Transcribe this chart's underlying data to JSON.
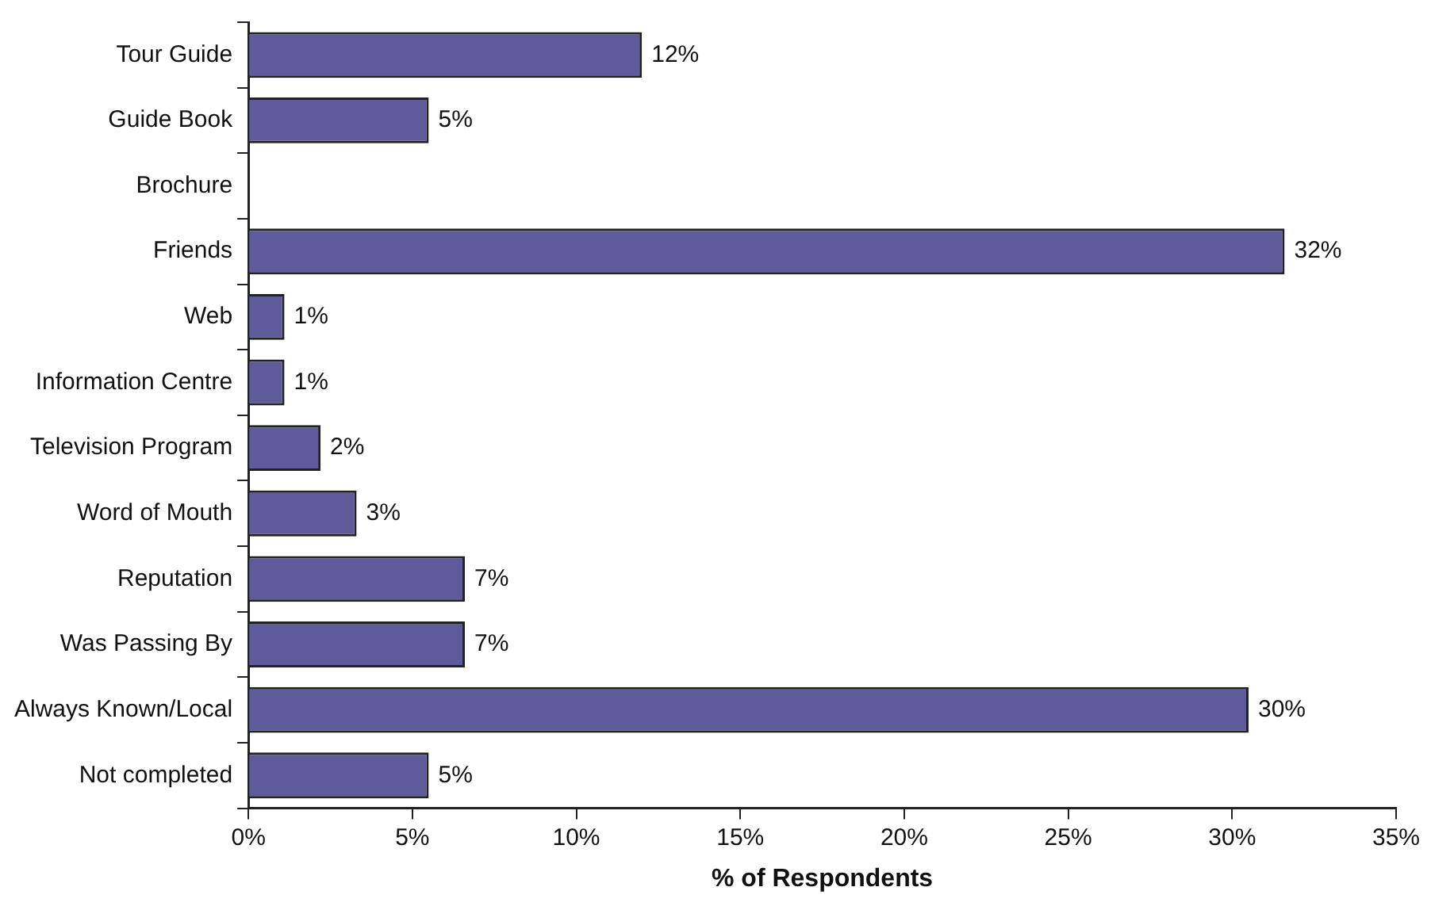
{
  "chart_data": {
    "type": "bar",
    "orientation": "horizontal",
    "xlabel": "% of Respondents",
    "categories": [
      "Tour Guide",
      "Guide Book",
      "Brochure",
      "Friends",
      "Web",
      "Information Centre",
      "Television Program",
      "Word of Mouth",
      "Reputation",
      "Was Passing By",
      "Always Known/Local",
      "Not completed"
    ],
    "values": [
      12,
      5.5,
      0,
      31.6,
      1.1,
      1.1,
      2.2,
      3.3,
      6.6,
      6.6,
      30.5,
      5.5
    ],
    "value_labels": [
      "12%",
      "5%",
      null,
      "32%",
      "1%",
      "1%",
      "2%",
      "3%",
      "7%",
      "7%",
      "30%",
      "5%"
    ],
    "color": "#5f5a99",
    "xlim": [
      0,
      35
    ],
    "xticks": [
      {
        "value": 0,
        "label": "0%"
      },
      {
        "value": 5,
        "label": "5%"
      },
      {
        "value": 10,
        "label": "10%"
      },
      {
        "value": 15,
        "label": "15%"
      },
      {
        "value": 20,
        "label": "20%"
      },
      {
        "value": 25,
        "label": "25%"
      },
      {
        "value": 30,
        "label": "30%"
      },
      {
        "value": 35,
        "label": "35%"
      }
    ],
    "grid": false,
    "legend": false
  }
}
